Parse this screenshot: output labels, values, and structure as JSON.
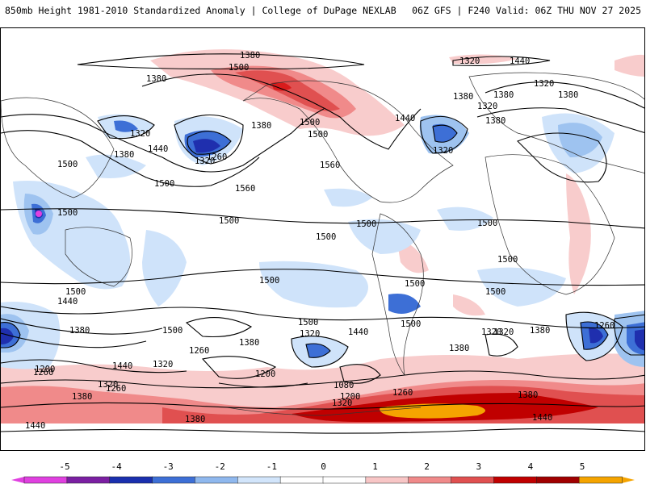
{
  "header": {
    "title_left": "850mb Height 1981-2010 Standardized Anomaly | College of DuPage NEXLAB",
    "title_right": "06Z GFS | F240 Valid: 06Z THU NOV 27 2025"
  },
  "map": {
    "contour_labels": [
      "1380",
      "1500",
      "1380",
      "1320",
      "1440",
      "1380",
      "1500",
      "1380",
      "1320",
      "1380",
      "1320",
      "1320",
      "1380",
      "1440",
      "1320",
      "1380",
      "1440",
      "1500",
      "1500",
      "1260",
      "1320",
      "1380",
      "1560",
      "1560",
      "1500",
      "1500",
      "1500",
      "1500",
      "1500",
      "1500",
      "1500",
      "1500",
      "1500",
      "1500",
      "1500",
      "1500",
      "1500",
      "1500",
      "1440",
      "1380",
      "1320",
      "1260",
      "1440",
      "1320",
      "1380",
      "1260",
      "1440",
      "1380",
      "1200",
      "1320",
      "1260",
      "1380",
      "1320",
      "1200",
      "1080",
      "1200",
      "1260",
      "1320",
      "1380",
      "1440",
      "1380",
      "1320",
      "1260",
      "1380",
      "1440"
    ],
    "colors": {
      "neg_weak": "#cfe3fa",
      "neg_mid": "#9ec3f0",
      "neg_strong": "#3d6fd6",
      "neg_extreme": "#1f2fae",
      "pos_weak": "#f8cccc",
      "pos_mid": "#f08a8a",
      "pos_strong": "#d81c1c",
      "pos_extreme": "#f5a400",
      "magenta": "#e040e0"
    }
  },
  "legend": {
    "ticks": [
      "-5",
      "-4",
      "-3",
      "-2",
      "-1",
      "0",
      "1",
      "2",
      "3",
      "4",
      "5"
    ],
    "colors": [
      "#e040e0",
      "#7b1fa2",
      "#1a2fae",
      "#3d6fd6",
      "#8fb8ee",
      "#d2e5fb",
      "#ffffff",
      "#ffffff",
      "#f8c6c6",
      "#f08a8a",
      "#e05050",
      "#c00000",
      "#a00000",
      "#f5a400"
    ]
  }
}
